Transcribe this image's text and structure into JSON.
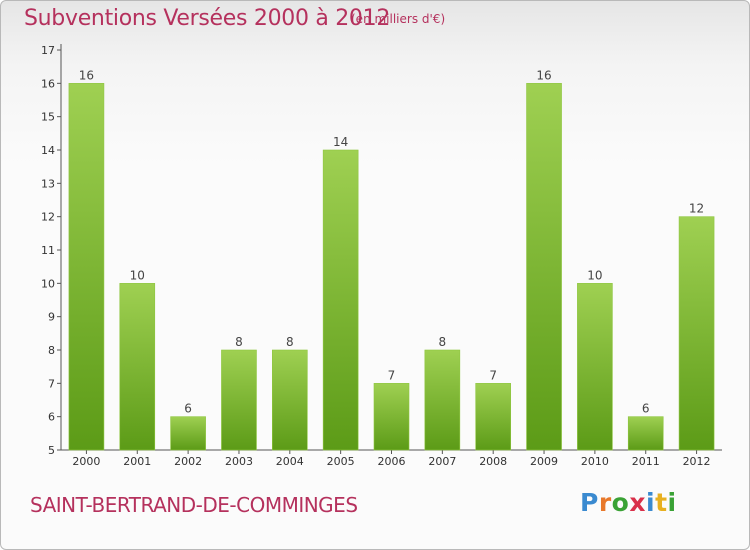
{
  "title": "Subventions Versées 2000 à 2012",
  "unit_note": "(en milliers d'€)",
  "commune": "SAINT-BERTRAND-DE-COMMINGES",
  "logo": {
    "text": "Proxiti",
    "letter_colors": [
      "#3a8ad0",
      "#e8782a",
      "#3aa235",
      "#d9304a",
      "#3a8ad0",
      "#e8b020",
      "#3aa235"
    ]
  },
  "colors": {
    "accent": "#b5315d",
    "bar_top": "#9fd052",
    "bar_bottom": "#5c9b17"
  },
  "chart_data": {
    "type": "bar",
    "title": "Subventions Versées 2000 à 2012",
    "xlabel": "",
    "ylabel": "",
    "categories": [
      "2000",
      "2001",
      "2002",
      "2003",
      "2004",
      "2005",
      "2006",
      "2007",
      "2008",
      "2009",
      "2010",
      "2011",
      "2012"
    ],
    "values": [
      16,
      10,
      6,
      8,
      8,
      14,
      7,
      8,
      7,
      16,
      10,
      6,
      12
    ],
    "ylim": [
      5,
      17
    ],
    "yticks": [
      5,
      6,
      7,
      8,
      9,
      10,
      11,
      12,
      13,
      14,
      15,
      16,
      17
    ],
    "grid": false,
    "legend": "none"
  }
}
